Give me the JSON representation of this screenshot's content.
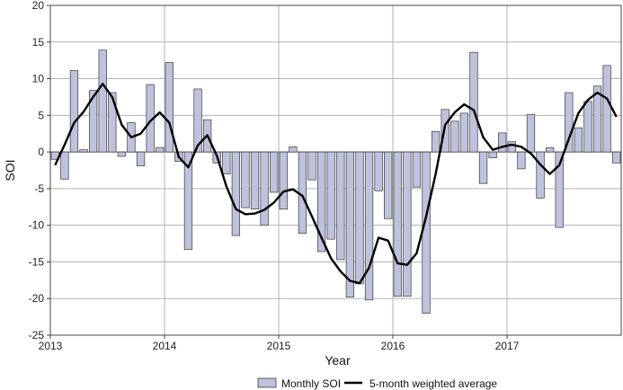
{
  "chart_data": {
    "type": "bar",
    "xlabel": "Year",
    "ylabel": "SOI",
    "ylim": [
      -25,
      20
    ],
    "yticks": [
      -25,
      -20,
      -15,
      -10,
      -5,
      0,
      5,
      10,
      15,
      20
    ],
    "xticks": [
      "2013",
      "2014",
      "2015",
      "2016",
      "2017"
    ],
    "x_start_year": 2013,
    "months": 60,
    "legend": {
      "placement": "bottom-center"
    },
    "grid": true,
    "colors": {
      "bar_fill": "#bfc2dc",
      "bar_stroke": "#3a3a3a",
      "line": "#000000",
      "grid": "#b3b3b3"
    },
    "series": [
      {
        "name": "Monthly SOI",
        "kind": "bar",
        "values": [
          -1.0,
          -3.7,
          11.1,
          0.3,
          8.4,
          13.9,
          8.1,
          -0.6,
          4.0,
          -1.9,
          9.2,
          0.6,
          12.2,
          -1.3,
          -13.3,
          8.6,
          4.4,
          -1.5,
          -3.0,
          -11.4,
          -7.6,
          -7.8,
          -10.0,
          -5.5,
          -7.8,
          0.7,
          -11.1,
          -3.8,
          -13.6,
          -11.9,
          -14.7,
          -19.8,
          -18.0,
          -20.2,
          -5.3,
          -9.1,
          -19.7,
          -19.7,
          -4.8,
          -22.0,
          2.8,
          5.8,
          4.2,
          5.3,
          13.6,
          -4.3,
          -0.8,
          2.6,
          1.4,
          -2.3,
          5.1,
          -6.3,
          0.6,
          -10.3,
          8.1,
          3.3,
          6.9,
          9.0,
          11.8,
          -1.5
        ]
      },
      {
        "name": "5-month weighted average",
        "kind": "line",
        "values": [
          -1.8,
          1.0,
          4.0,
          5.5,
          7.5,
          9.3,
          7.5,
          3.7,
          2.0,
          2.5,
          4.2,
          5.4,
          4.0,
          -0.7,
          -2.1,
          0.9,
          2.3,
          -0.5,
          -4.7,
          -7.8,
          -8.5,
          -8.4,
          -7.9,
          -6.9,
          -5.4,
          -5.1,
          -6.0,
          -8.8,
          -11.7,
          -14.5,
          -16.3,
          -17.6,
          -17.9,
          -15.8,
          -11.7,
          -12.1,
          -15.2,
          -15.4,
          -13.8,
          -8.8,
          -3.0,
          3.7,
          5.4,
          6.5,
          5.7,
          2.0,
          0.3,
          0.7,
          1.0,
          0.7,
          -0.2,
          -1.7,
          -3.0,
          -1.8,
          1.8,
          5.3,
          7.1,
          8.1,
          7.3,
          4.8
        ]
      }
    ]
  }
}
